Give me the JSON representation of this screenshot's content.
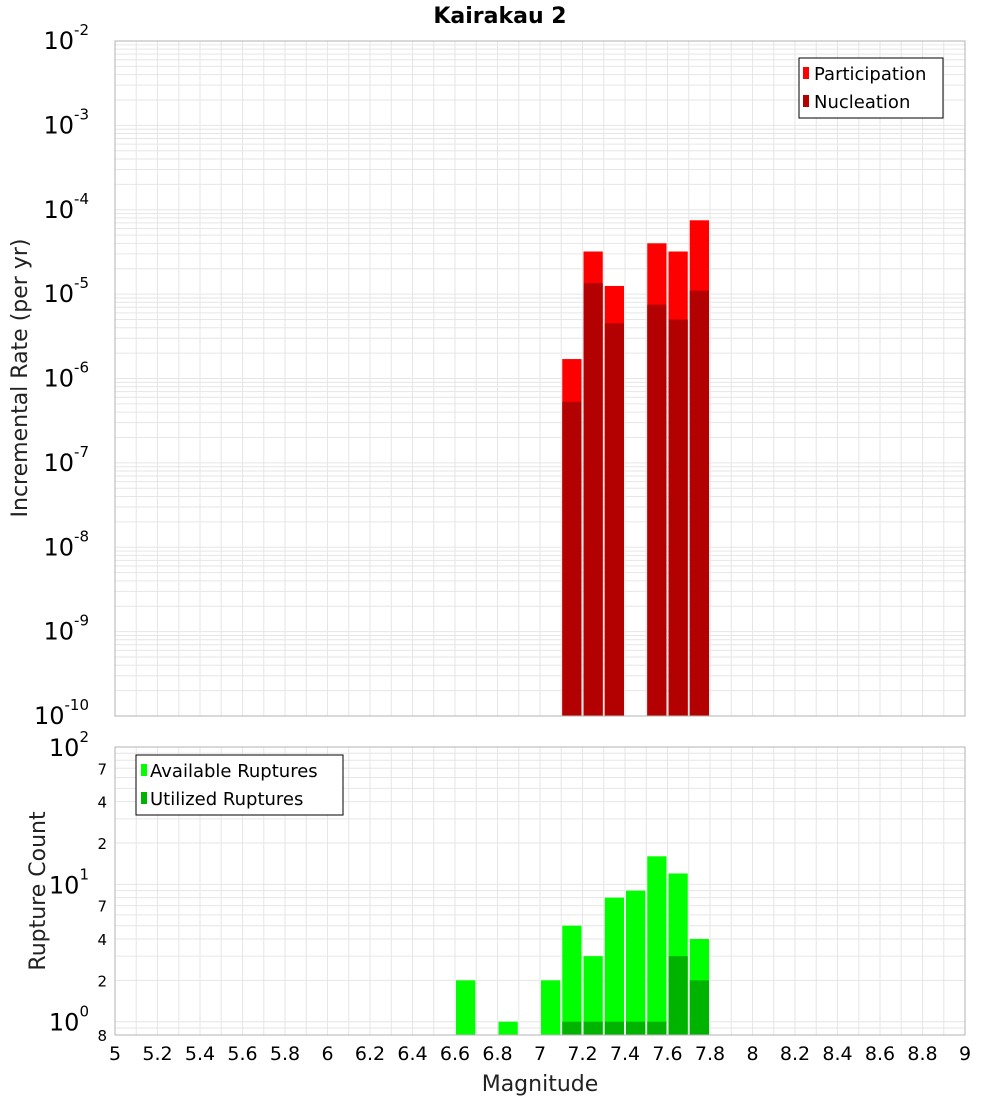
{
  "chart_title": "Kairakau 2",
  "colors": {
    "participation": "#ff0000",
    "nucleation": "#b30000",
    "available": "#00ff00",
    "utilized": "#00b300",
    "grid": "#e6e6e6",
    "frame": "#b3b3b3"
  },
  "chart_data": [
    {
      "type": "bar",
      "title": "Kairakau 2",
      "ylabel": "Incremental Rate (per yr)",
      "xlabel": "",
      "yscale": "log",
      "ylim": [
        1e-10,
        0.01
      ],
      "xlim": [
        5,
        9
      ],
      "grid": true,
      "legend_position": "top-right",
      "y_ticks": [
        {
          "base": "10",
          "exp": "-2",
          "value": 0.01
        },
        {
          "base": "10",
          "exp": "-3",
          "value": 0.001
        },
        {
          "base": "10",
          "exp": "-4",
          "value": 0.0001
        },
        {
          "base": "10",
          "exp": "-5",
          "value": 1e-05
        },
        {
          "base": "10",
          "exp": "-6",
          "value": 1e-06
        },
        {
          "base": "10",
          "exp": "-7",
          "value": 1e-07
        },
        {
          "base": "10",
          "exp": "-8",
          "value": 1e-08
        },
        {
          "base": "10",
          "exp": "-9",
          "value": 1e-09
        },
        {
          "base": "10",
          "exp": "-10",
          "value": 1e-10
        }
      ],
      "x": [
        7.15,
        7.25,
        7.35,
        7.55,
        7.65,
        7.75
      ],
      "bin_width": 0.1,
      "series": [
        {
          "name": "Participation",
          "values": [
            1.7e-06,
            3.2e-05,
            1.25e-05,
            4e-05,
            3.2e-05,
            7.5e-05
          ]
        },
        {
          "name": "Nucleation",
          "values": [
            5.3e-07,
            1.35e-05,
            4.5e-06,
            7.5e-06,
            5e-06,
            1.1e-05
          ]
        }
      ]
    },
    {
      "type": "bar",
      "ylabel": "Rupture Count",
      "xlabel": "Magnitude",
      "yscale": "log",
      "ylim": [
        0.8,
        100
      ],
      "xlim": [
        5,
        9
      ],
      "grid": true,
      "legend_position": "top-left",
      "y_ticks": [
        {
          "base": "10",
          "exp": "2",
          "value": 100
        },
        {
          "base": "10",
          "exp": "1",
          "value": 10
        },
        {
          "base": "10",
          "exp": "0",
          "value": 1
        }
      ],
      "y_minor_ticks": [
        {
          "label": "7",
          "value": 70
        },
        {
          "label": "4",
          "value": 40
        },
        {
          "label": "2",
          "value": 20
        },
        {
          "label": "7",
          "value": 7
        },
        {
          "label": "4",
          "value": 4
        },
        {
          "label": "2",
          "value": 2
        },
        {
          "label": "8",
          "value": 0.8
        }
      ],
      "x_ticks": [
        "5",
        "5.2",
        "5.4",
        "5.6",
        "5.8",
        "6",
        "6.2",
        "6.4",
        "6.6",
        "6.8",
        "7",
        "7.2",
        "7.4",
        "7.6",
        "7.8",
        "8",
        "8.2",
        "8.4",
        "8.6",
        "8.8",
        "9"
      ],
      "x": [
        6.65,
        6.85,
        7.05,
        7.15,
        7.25,
        7.35,
        7.45,
        7.55,
        7.65,
        7.75
      ],
      "bin_width": 0.1,
      "series": [
        {
          "name": "Available Ruptures",
          "values": [
            2,
            1,
            2,
            5,
            3,
            8,
            9,
            16,
            12,
            4
          ]
        },
        {
          "name": "Utilized Ruptures",
          "values": [
            0,
            0,
            0,
            1,
            1,
            1,
            1,
            1,
            3,
            2
          ]
        }
      ]
    }
  ]
}
